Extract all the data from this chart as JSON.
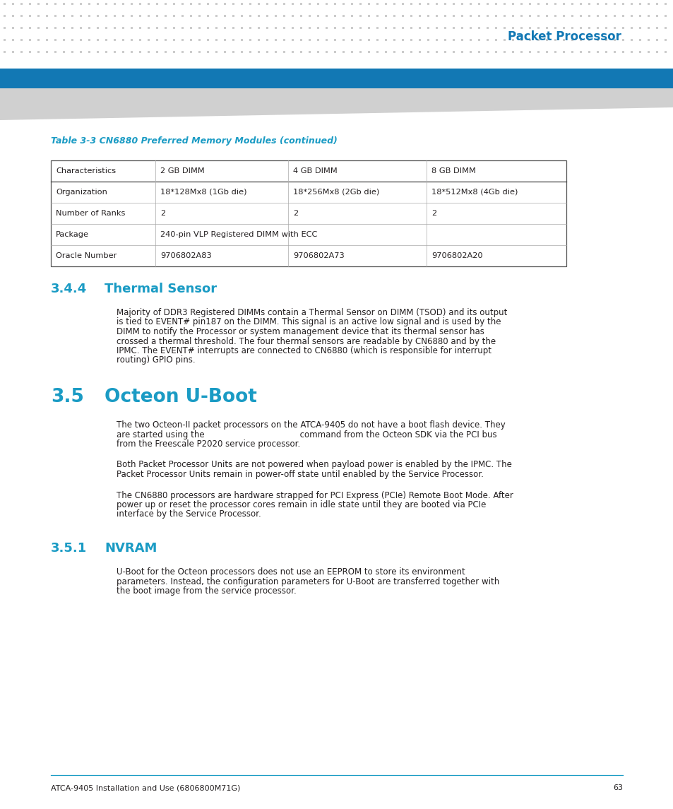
{
  "header_text": "Packet Processor",
  "header_blue_color": "#1278b4",
  "table_caption": "Table 3-3 CN6880 Preferred Memory Modules (continued)",
  "table_caption_color": "#1a9bc4",
  "table_headers": [
    "Characteristics",
    "2 GB DIMM",
    "4 GB DIMM",
    "8 GB DIMM"
  ],
  "table_rows": [
    [
      "Organization",
      "18*128Mx8 (1Gb die)",
      "18*256Mx8 (2Gb die)",
      "18*512Mx8 (4Gb die)"
    ],
    [
      "Number of Ranks",
      "2",
      "2",
      "2"
    ],
    [
      "Package",
      "240-pin VLP Registered DIMM with ECC",
      "",
      ""
    ],
    [
      "Oracle Number",
      "9706802A83",
      "9706802A73",
      "9706802A20"
    ]
  ],
  "section_344_num": "3.4.4",
  "section_344_title": "Thermal Sensor",
  "section_344_color": "#1a9bc4",
  "section_344_text": "Majority of DDR3 Registered DIMMs contain a Thermal Sensor on DIMM (TSOD) and its output is tied to EVENT# pin187 on the DIMM. This signal is an active low signal and is used by the DIMM to notify the Processor or system management device that its thermal sensor has crossed a thermal threshold. The four thermal sensors are readable by CN6880 and by the IPMC. The EVENT# interrupts are connected to CN6880 (which is responsible for interrupt routing) GPIO pins.",
  "section_35_num": "3.5",
  "section_35_title": "Octeon U-Boot",
  "section_35_color": "#1a9bc4",
  "section_35_text1": "The two Octeon-II packet processors on the ATCA-9405 do not have a boot flash device. They are started using the                                    command from the Octeon SDK via the PCI bus from the Freescale P2020 service processor.",
  "section_35_text2": "Both Packet Processor Units are not powered when payload power is enabled by the IPMC. The Packet Processor Units remain in power-off state until enabled by the Service Processor.",
  "section_35_text3": "The CN6880 processors are hardware strapped for PCI Express (PCIe) Remote Boot Mode. After power up or reset the processor cores remain in idle state until they are booted via PCIe interface by the Service Processor.",
  "section_351_num": "3.5.1",
  "section_351_title": "NVRAM",
  "section_351_color": "#1a9bc4",
  "section_351_text": "U-Boot for the Octeon processors does not use an EEPROM to store its environment parameters. Instead, the configuration parameters for U-Boot are transferred together with the boot image from the service processor.",
  "footer_text": "ATCA-9405 Installation and Use (6806800M71G)",
  "footer_page": "63",
  "footer_line_color": "#1a9bc4",
  "bg_color": "#ffffff",
  "text_color": "#231f20"
}
